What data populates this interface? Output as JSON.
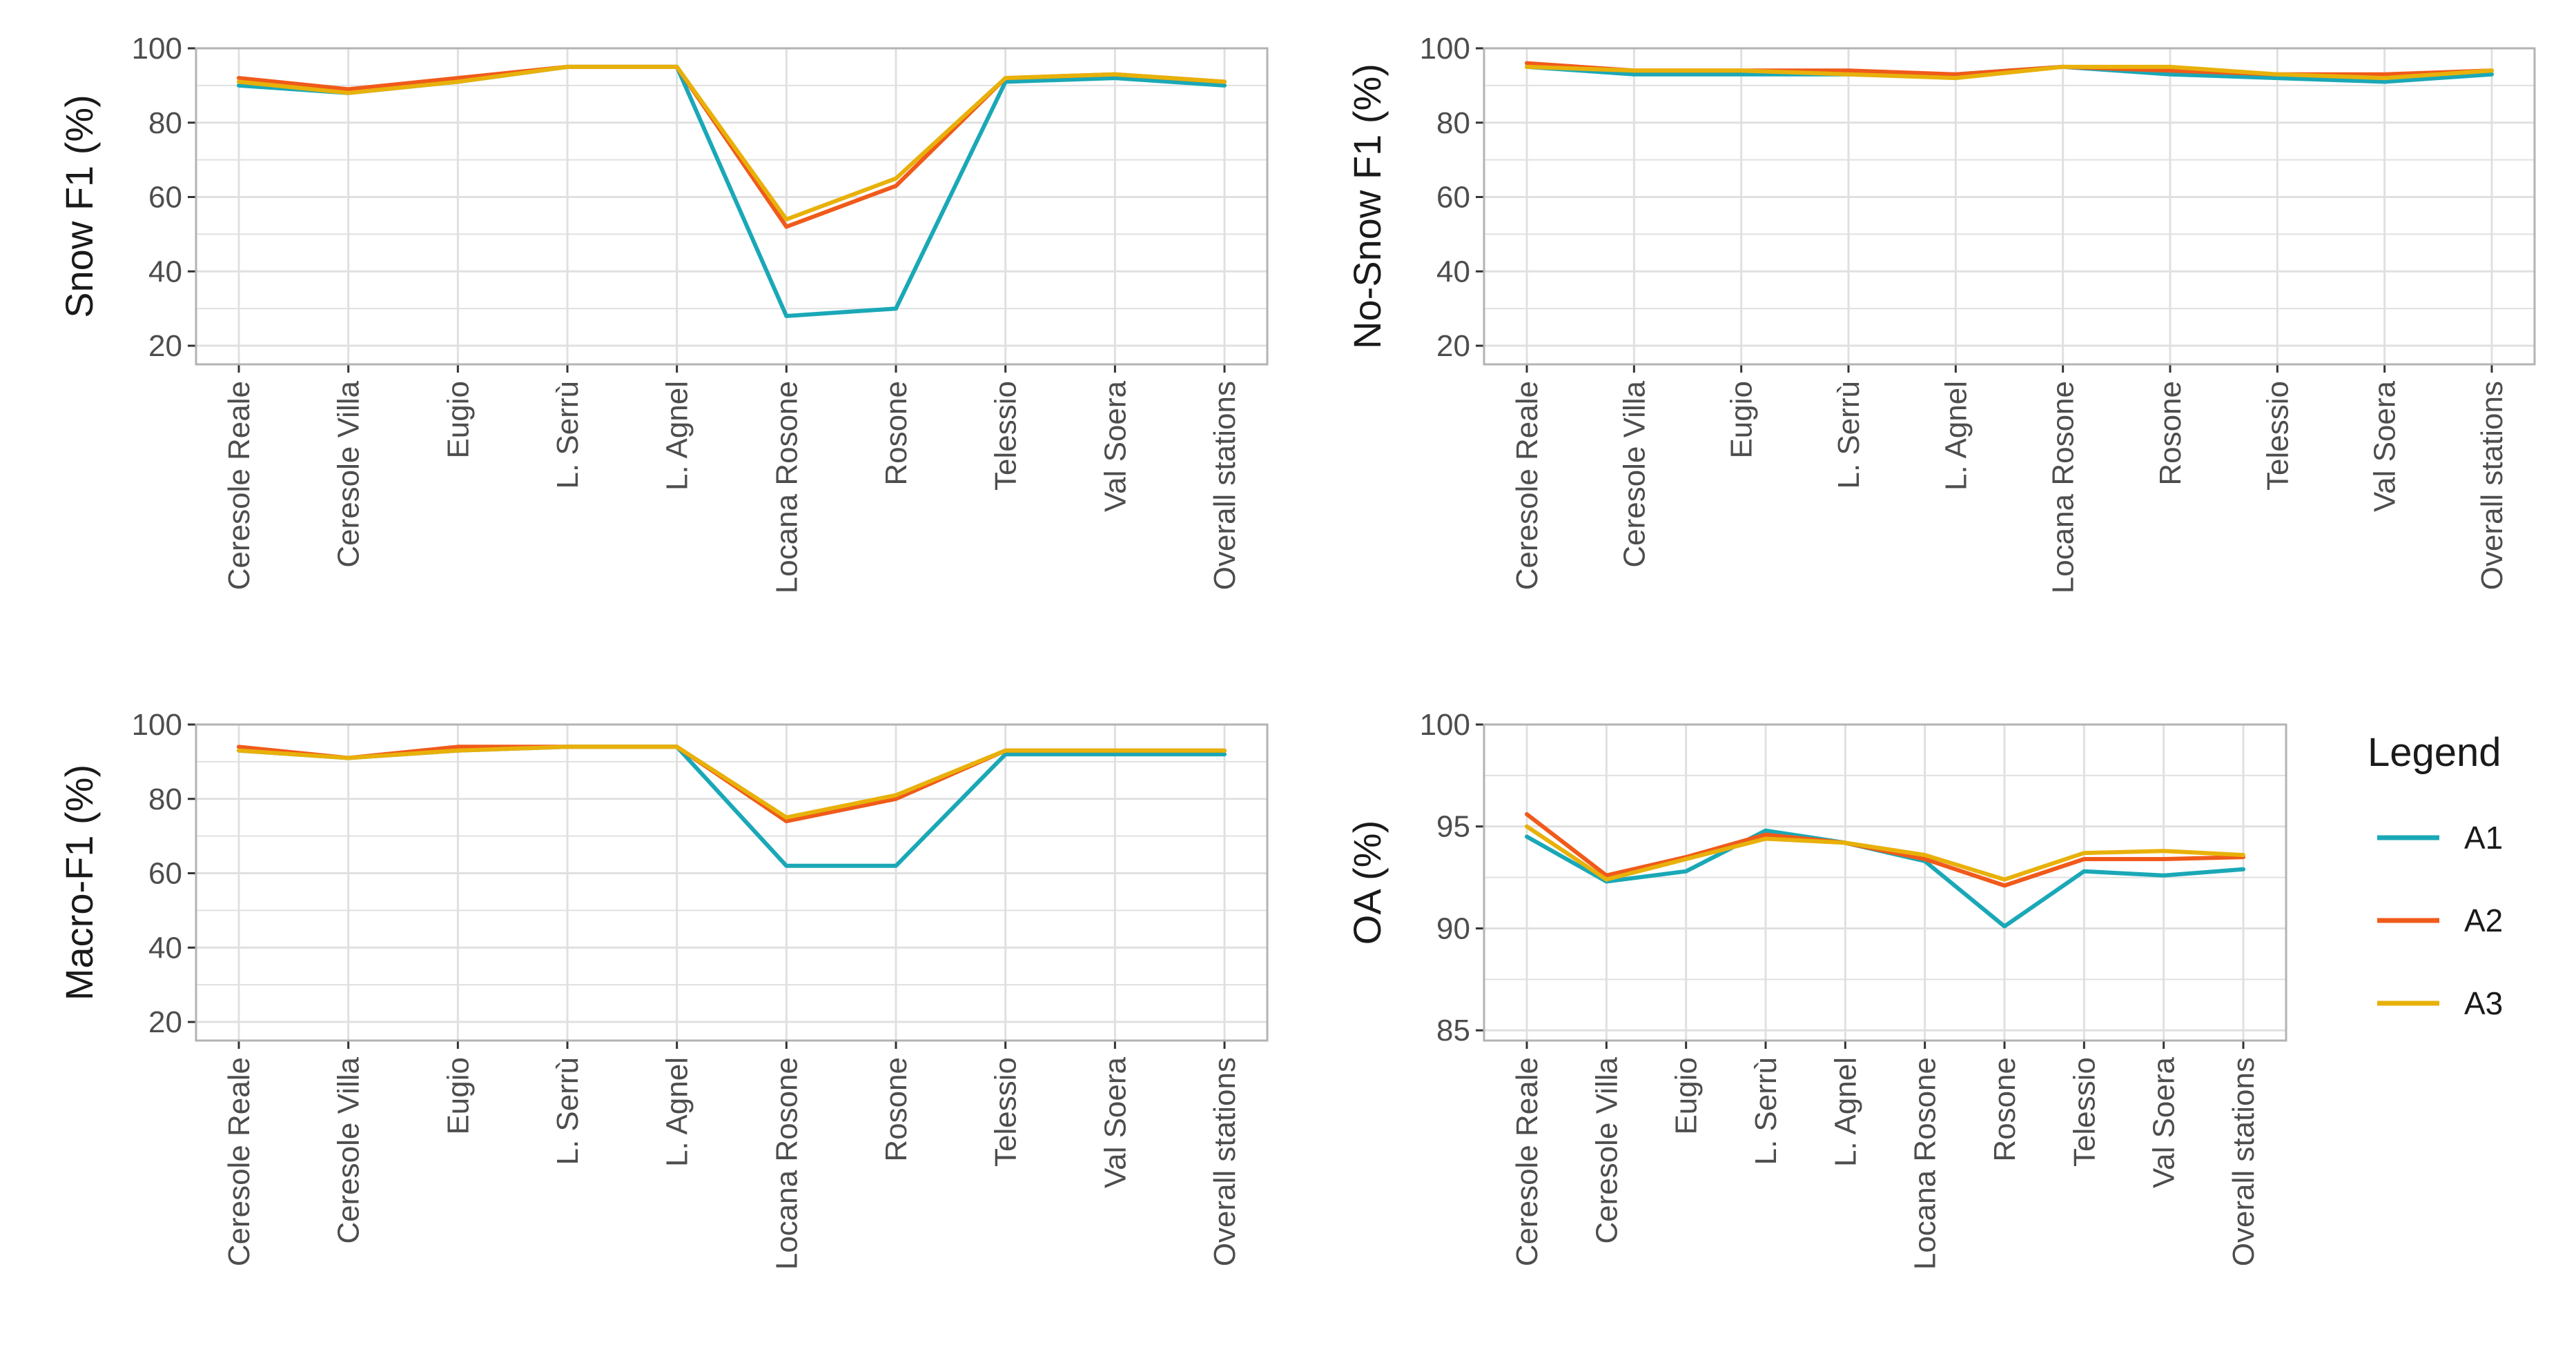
{
  "chart_data": [
    {
      "type": "line",
      "ylabel": "Snow F1 (%)",
      "ylim": [
        15,
        100
      ],
      "yticks": [
        20,
        40,
        60,
        80,
        100
      ],
      "categories": [
        "Ceresole Reale",
        "Ceresole Villa",
        "Eugio",
        "L. Serrù",
        "L. Agnel",
        "Locana Rosone",
        "Rosone",
        "Telessio",
        "Val Soera",
        "Overall stations"
      ],
      "series": [
        {
          "name": "A1",
          "values": [
            90,
            88,
            91,
            95,
            95,
            28,
            30,
            91,
            92,
            90
          ]
        },
        {
          "name": "A2",
          "values": [
            92,
            89,
            92,
            95,
            95,
            52,
            63,
            92,
            93,
            91
          ]
        },
        {
          "name": "A3",
          "values": [
            91,
            88,
            91,
            95,
            95,
            54,
            65,
            92,
            93,
            91
          ]
        }
      ]
    },
    {
      "type": "line",
      "ylabel": "No-Snow F1 (%)",
      "ylim": [
        15,
        100
      ],
      "yticks": [
        20,
        40,
        60,
        80,
        100
      ],
      "categories": [
        "Ceresole Reale",
        "Ceresole Villa",
        "Eugio",
        "L. Serrù",
        "L. Agnel",
        "Locana Rosone",
        "Rosone",
        "Telessio",
        "Val Soera",
        "Overall stations"
      ],
      "series": [
        {
          "name": "A1",
          "values": [
            95,
            93,
            93,
            93,
            93,
            95,
            93,
            92,
            91,
            93
          ]
        },
        {
          "name": "A2",
          "values": [
            96,
            94,
            94,
            94,
            93,
            95,
            94,
            93,
            93,
            94
          ]
        },
        {
          "name": "A3",
          "values": [
            95,
            94,
            94,
            93,
            92,
            95,
            95,
            93,
            92,
            94
          ]
        }
      ]
    },
    {
      "type": "line",
      "ylabel": "Macro-F1 (%)",
      "ylim": [
        15,
        100
      ],
      "yticks": [
        20,
        40,
        60,
        80,
        100
      ],
      "categories": [
        "Ceresole Reale",
        "Ceresole Villa",
        "Eugio",
        "L. Serrù",
        "L. Agnel",
        "Locana Rosone",
        "Rosone",
        "Telessio",
        "Val Soera",
        "Overall stations"
      ],
      "series": [
        {
          "name": "A1",
          "values": [
            93,
            91,
            93,
            94,
            94,
            62,
            62,
            92,
            92,
            92
          ]
        },
        {
          "name": "A2",
          "values": [
            94,
            91,
            94,
            94,
            94,
            74,
            80,
            93,
            93,
            93
          ]
        },
        {
          "name": "A3",
          "values": [
            93,
            91,
            93,
            94,
            94,
            75,
            81,
            93,
            93,
            93
          ]
        }
      ]
    },
    {
      "type": "line",
      "ylabel": "OA (%)",
      "ylim": [
        84.5,
        100
      ],
      "yticks": [
        85,
        90,
        95,
        100
      ],
      "categories": [
        "Ceresole Reale",
        "Ceresole Villa",
        "Eugio",
        "L. Serrù",
        "L. Agnel",
        "Locana Rosone",
        "Rosone",
        "Telessio",
        "Val Soera",
        "Overall stations"
      ],
      "series": [
        {
          "name": "A1",
          "values": [
            94.5,
            92.3,
            92.8,
            94.8,
            94.2,
            93.3,
            90.1,
            92.8,
            92.6,
            92.9
          ]
        },
        {
          "name": "A2",
          "values": [
            95.6,
            92.6,
            93.5,
            94.6,
            94.2,
            93.4,
            92.1,
            93.4,
            93.4,
            93.5
          ]
        },
        {
          "name": "A3",
          "values": [
            95.0,
            92.4,
            93.4,
            94.4,
            94.2,
            93.6,
            92.4,
            93.7,
            93.8,
            93.6
          ]
        }
      ]
    }
  ],
  "legend": {
    "title": "Legend",
    "items": [
      {
        "label": "A1",
        "color": "#1aa8b7"
      },
      {
        "label": "A2",
        "color": "#f05a1a"
      },
      {
        "label": "A3",
        "color": "#e8b10a"
      }
    ]
  },
  "colors": {
    "A1": "#1aa8b7",
    "A2": "#f05a1a",
    "A3": "#e8b10a",
    "grid": "#e0e0e0",
    "panel_border": "#b3b3b3",
    "tick": "#333333"
  }
}
